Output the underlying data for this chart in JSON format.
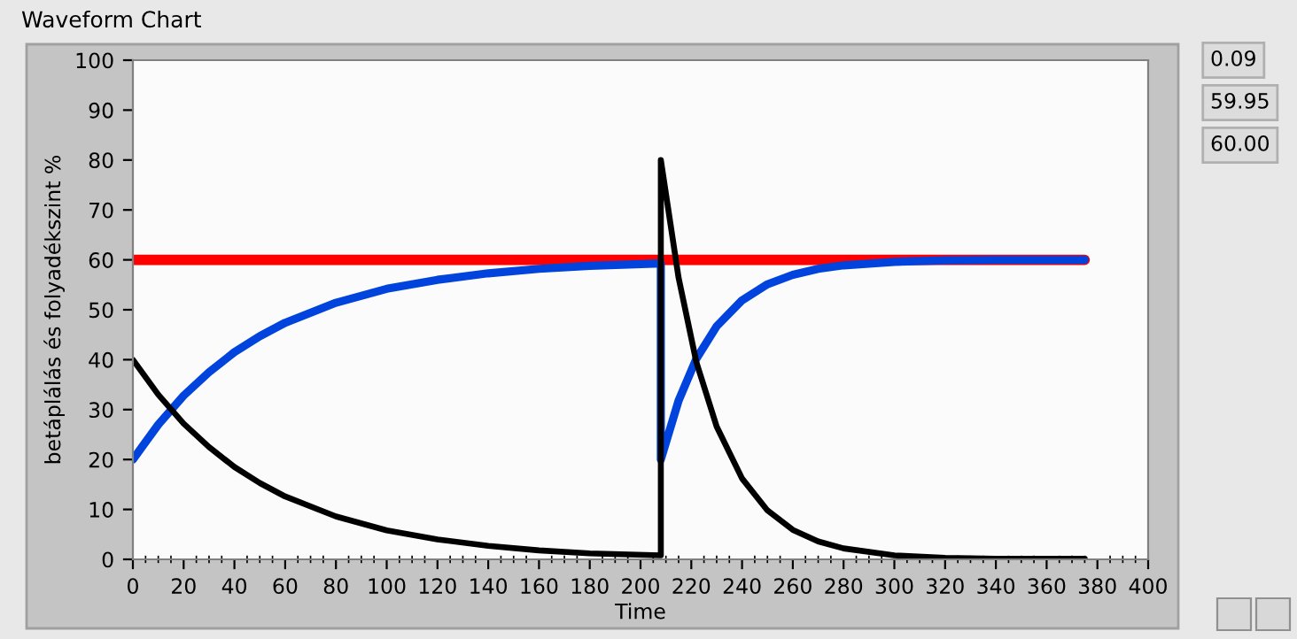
{
  "chart_data": {
    "type": "line",
    "title": "Waveform Chart",
    "xlabel": "Time",
    "ylabel": "betáplálás és folyadékszint %",
    "xlim": [
      0,
      400
    ],
    "xticks": [
      0,
      20,
      40,
      60,
      80,
      100,
      120,
      140,
      160,
      180,
      200,
      220,
      240,
      260,
      280,
      300,
      320,
      340,
      360,
      380,
      400
    ],
    "ylim": [
      0,
      100
    ],
    "yticks": [
      0,
      10,
      20,
      30,
      40,
      50,
      60,
      70,
      80,
      90,
      100
    ],
    "grid": false,
    "marker": "none",
    "line_style": "solid",
    "annotations": [
      "0.09",
      "59.95",
      "60.00"
    ],
    "series": [
      {
        "color": "#ff0000",
        "x": [
          0,
          375
        ],
        "values": [
          60,
          60
        ]
      },
      {
        "color": "#0044dd",
        "x": [
          0,
          10,
          20,
          30,
          40,
          50,
          60,
          80,
          100,
          120,
          140,
          160,
          180,
          208,
          208,
          215,
          222,
          230,
          240,
          250,
          260,
          270,
          280,
          300,
          320,
          340,
          375
        ],
        "values": [
          20,
          27.0,
          32.8,
          37.5,
          41.5,
          44.7,
          47.4,
          51.4,
          54.2,
          56.0,
          57.3,
          58.2,
          58.8,
          59.3,
          20,
          31.8,
          40.2,
          46.7,
          51.9,
          55.1,
          57.0,
          58.2,
          58.9,
          59.6,
          59.9,
          60,
          60
        ]
      },
      {
        "color": "#000000",
        "x": [
          0,
          10,
          20,
          30,
          40,
          50,
          60,
          80,
          100,
          120,
          140,
          160,
          180,
          208,
          208,
          215,
          222,
          230,
          240,
          250,
          260,
          270,
          280,
          300,
          320,
          340,
          375
        ],
        "values": [
          40,
          33.0,
          27.2,
          22.5,
          18.5,
          15.3,
          12.6,
          8.6,
          5.8,
          4.0,
          2.7,
          1.8,
          1.2,
          0.8,
          80,
          56.4,
          39.5,
          26.6,
          16.2,
          9.8,
          5.9,
          3.6,
          2.2,
          0.8,
          0.3,
          0.1,
          0.1
        ]
      }
    ]
  }
}
